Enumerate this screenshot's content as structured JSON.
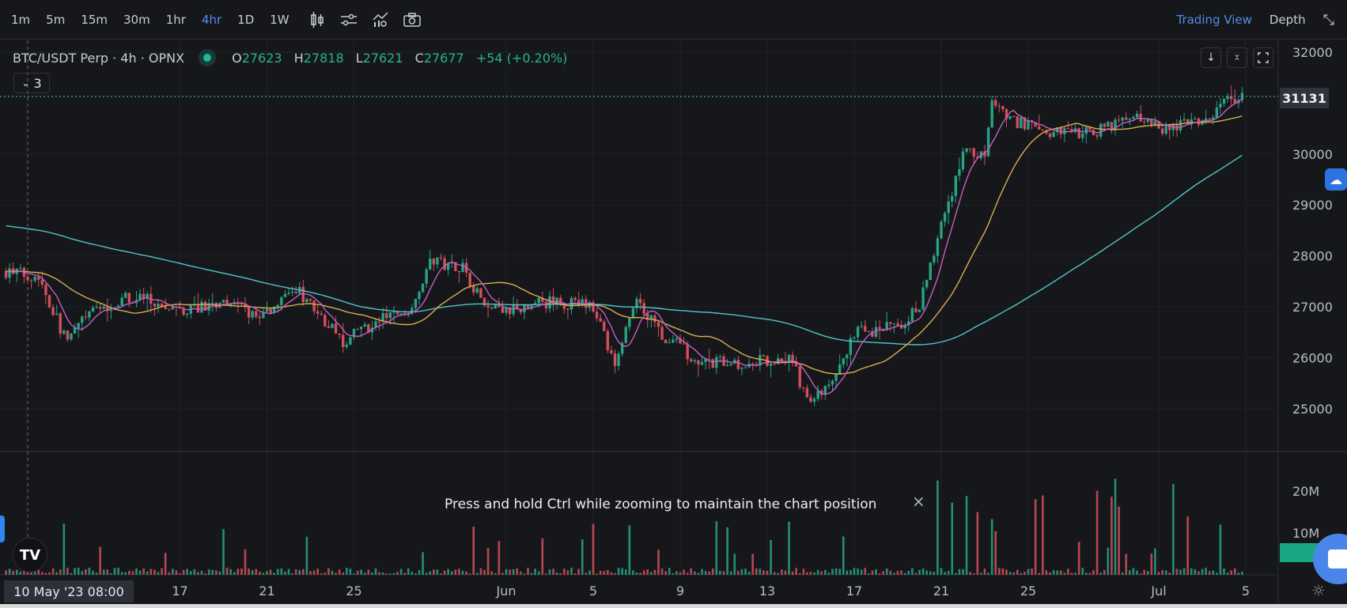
{
  "toolbar": {
    "timeframes": [
      "1m",
      "5m",
      "15m",
      "30m",
      "1hr",
      "4hr",
      "1D",
      "1W"
    ],
    "active_timeframe": "4hr",
    "tools": [
      "candle-type-icon",
      "indicator-settings-icon",
      "indicators-icon",
      "camera-icon"
    ],
    "tabs": [
      "Trading View",
      "Depth"
    ],
    "active_tab": "Trading View"
  },
  "legend": {
    "symbol": "BTC/USDT Perp · 4h · OPNX",
    "o_label": "O",
    "o": "27623",
    "h_label": "H",
    "h": "27818",
    "l_label": "L",
    "l": "27621",
    "c_label": "C",
    "c": "27677",
    "change": "+54 (+0.20%)",
    "indicators_collapsed": "3"
  },
  "last_price": "31131",
  "toast": {
    "message": "Press and hold Ctrl while zooming to maintain the chart position",
    "close": "×"
  },
  "crosshair_date": "10 May '23  08:00",
  "colors": {
    "up": "#27a387",
    "down": "#d2505c",
    "ma7": "#c35fc4",
    "ma25": "#d9ae4f",
    "ma99": "#4fc6c9",
    "accent": "#4f8fe6"
  },
  "chart_data": {
    "type": "candlestick",
    "symbol": "BTC/USDT Perp",
    "interval": "4h",
    "y_ticks": [
      25000,
      26000,
      27000,
      28000,
      29000,
      30000,
      32000
    ],
    "y_range": [
      24500,
      32200
    ],
    "volume_ticks": [
      {
        "label": "10M",
        "value": 10000000
      },
      {
        "label": "20M",
        "value": 20000000
      }
    ],
    "x_ticks": [
      {
        "day": 8,
        "label": "17"
      },
      {
        "day": 12,
        "label": "21"
      },
      {
        "day": 16,
        "label": "25"
      },
      {
        "day": 23,
        "label": "Jun"
      },
      {
        "day": 27,
        "label": "5"
      },
      {
        "day": 31,
        "label": "9"
      },
      {
        "day": 35,
        "label": "13"
      },
      {
        "day": 39,
        "label": "17"
      },
      {
        "day": 43,
        "label": "21"
      },
      {
        "day": 47,
        "label": "25"
      },
      {
        "day": 53,
        "label": "Jul"
      },
      {
        "day": 57,
        "label": "5"
      }
    ],
    "x_start": "2023-05-09 08:00",
    "moving_averages": [
      7,
      25,
      99
    ],
    "price_anchors": [
      [
        0,
        27700
      ],
      [
        1.5,
        27600
      ],
      [
        2.8,
        26300
      ],
      [
        3.6,
        26800
      ],
      [
        5,
        27100
      ],
      [
        6,
        27200
      ],
      [
        8,
        26900
      ],
      [
        10,
        27100
      ],
      [
        11.5,
        26800
      ],
      [
        13.5,
        27300
      ],
      [
        15.5,
        26300
      ],
      [
        17,
        26700
      ],
      [
        18.6,
        27000
      ],
      [
        19.5,
        27900
      ],
      [
        21,
        27800
      ],
      [
        22,
        27000
      ],
      [
        23,
        26900
      ],
      [
        25,
        27100
      ],
      [
        27,
        27000
      ],
      [
        28,
        25800
      ],
      [
        29,
        27200
      ],
      [
        30,
        26500
      ],
      [
        32,
        25900
      ],
      [
        34,
        25900
      ],
      [
        36,
        26000
      ],
      [
        37,
        25100
      ],
      [
        38,
        25500
      ],
      [
        39,
        26500
      ],
      [
        41,
        26600
      ],
      [
        42,
        27000
      ],
      [
        43,
        28600
      ],
      [
        44,
        30000
      ],
      [
        45,
        30000
      ],
      [
        45.3,
        31000
      ],
      [
        46,
        30700
      ],
      [
        48,
        30400
      ],
      [
        50,
        30400
      ],
      [
        52,
        30800
      ],
      [
        53,
        30500
      ],
      [
        55,
        30600
      ],
      [
        56.3,
        31100
      ]
    ],
    "ma99_start": 28600
  }
}
